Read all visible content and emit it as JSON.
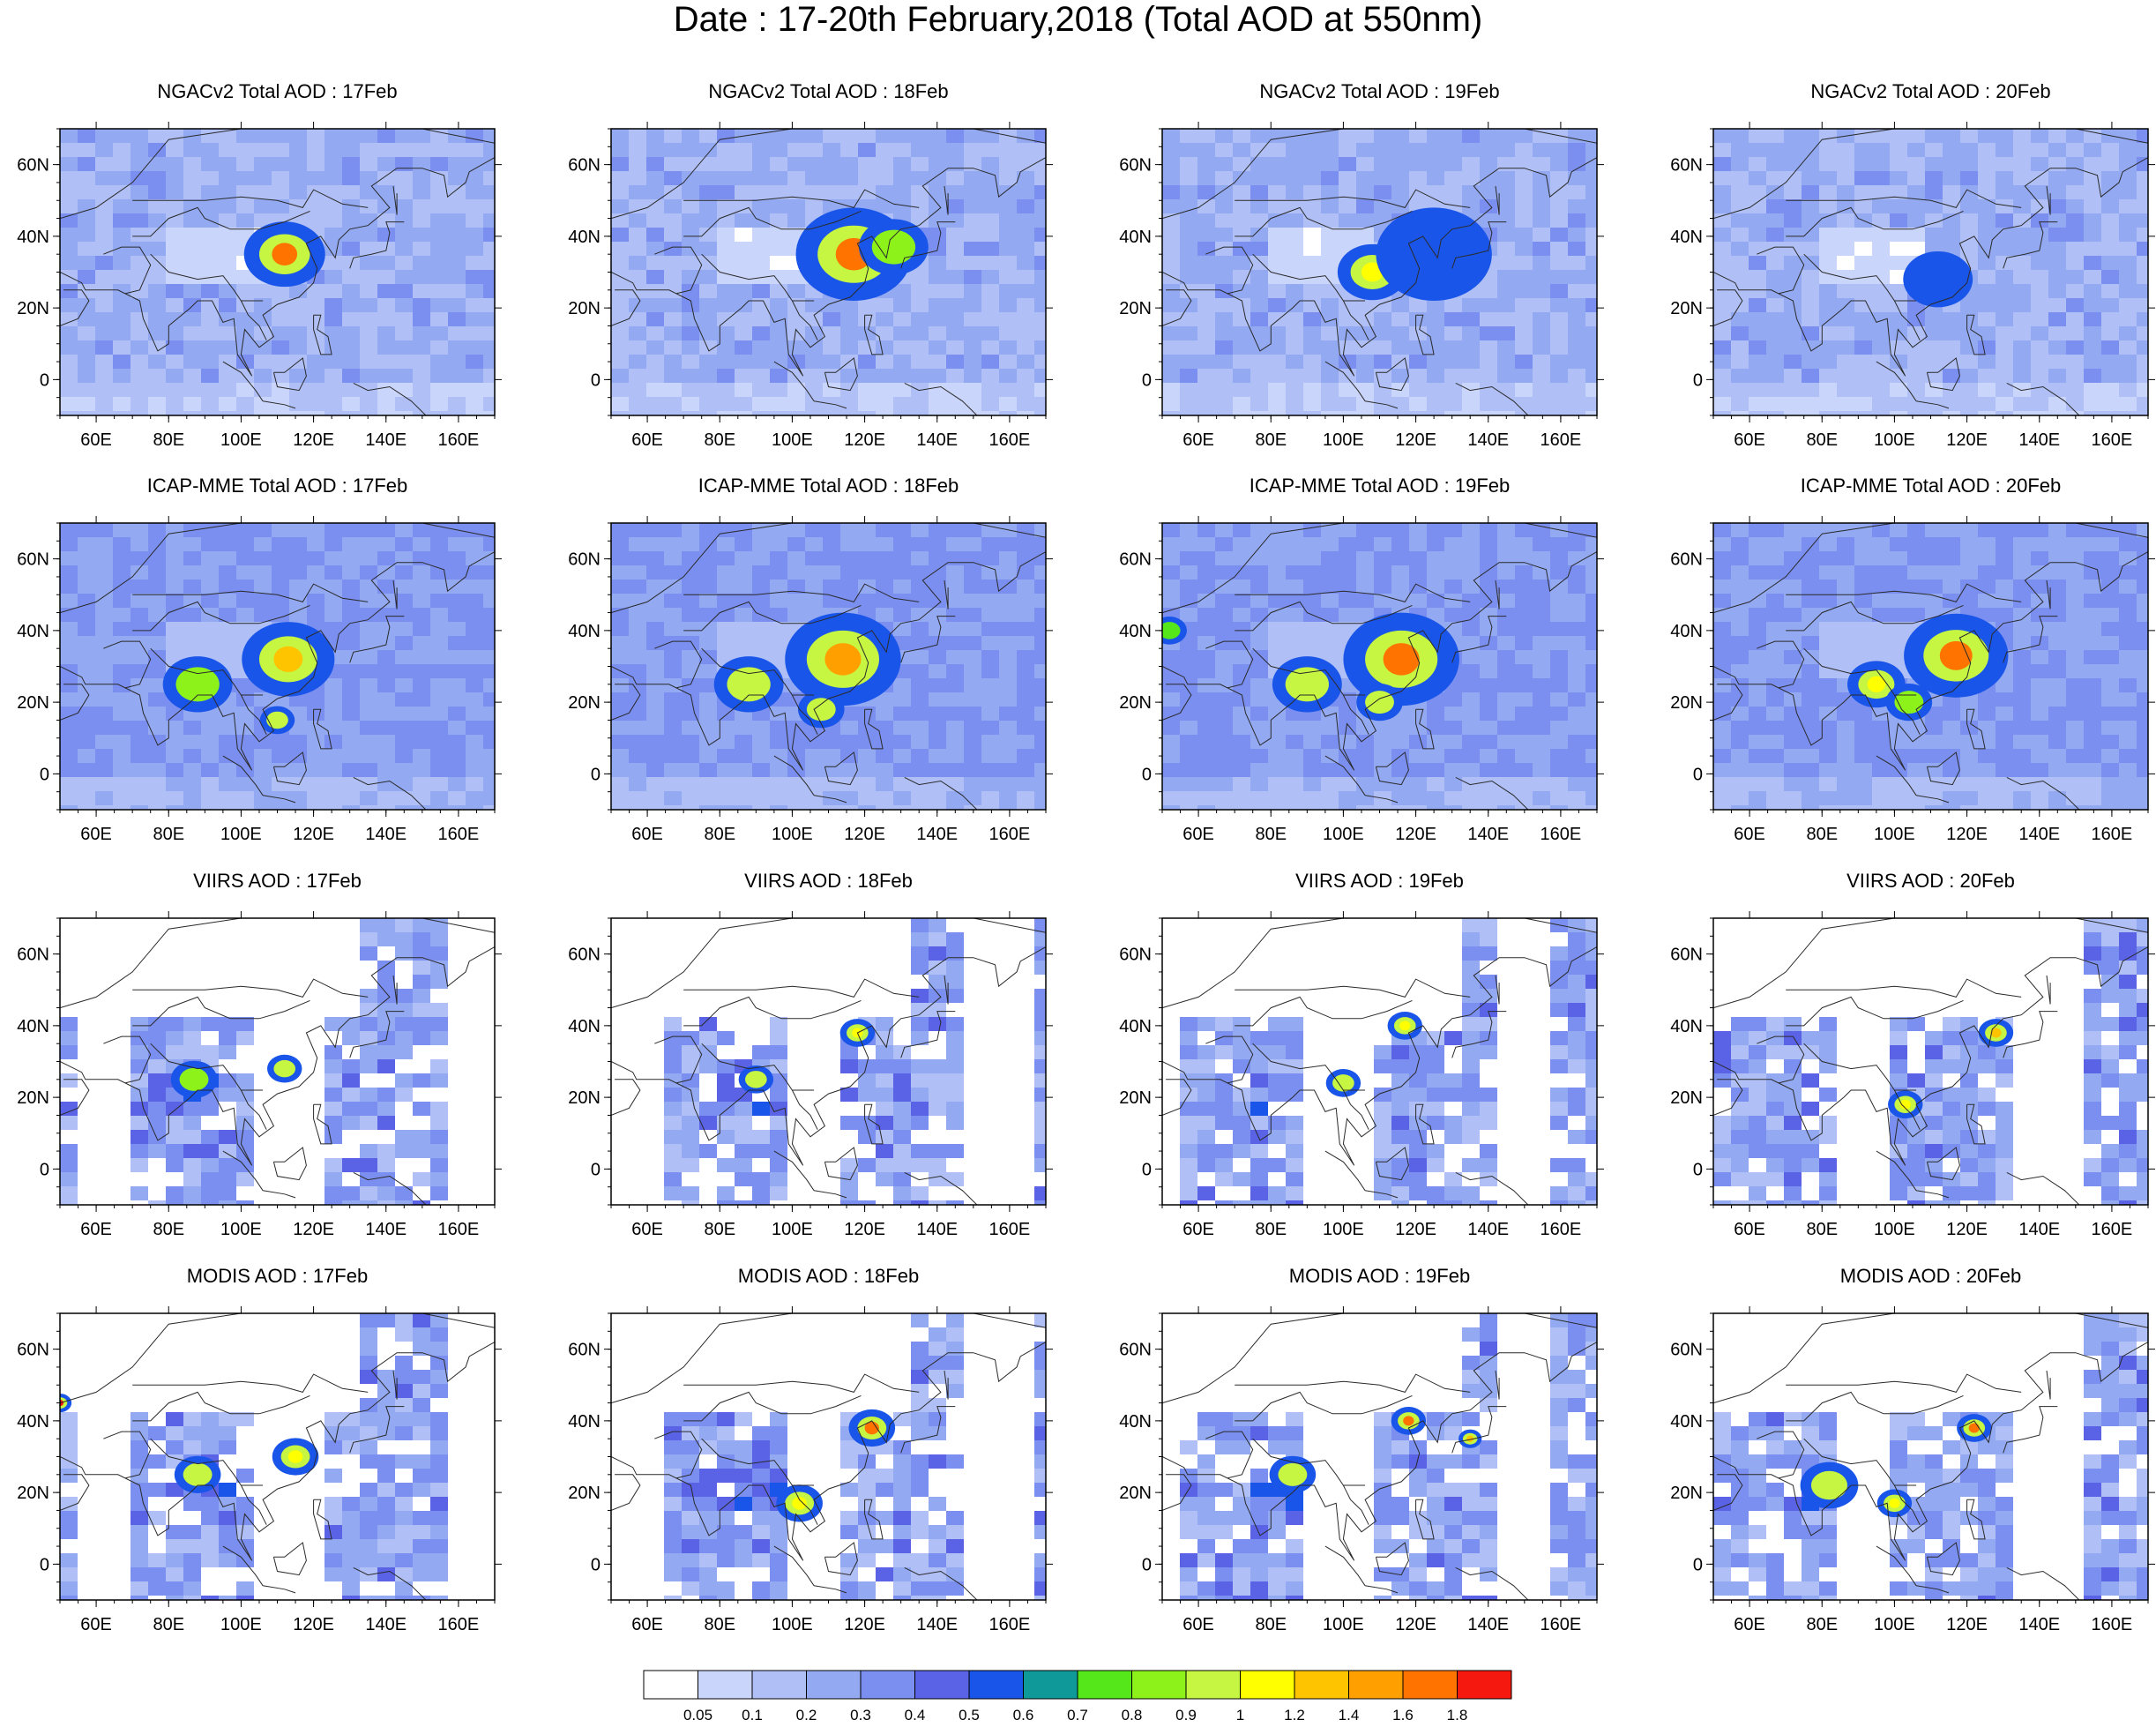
{
  "title": "Date : 17-20th February,2018 (Total AOD at 550nm)",
  "chart_data": {
    "type": "heatmap",
    "layout": "4x4 grid of map panels",
    "x_ticks": [
      "60E",
      "80E",
      "100E",
      "120E",
      "140E",
      "160E"
    ],
    "x_tick_values": [
      60,
      80,
      100,
      120,
      140,
      160
    ],
    "y_ticks": [
      "60N",
      "40N",
      "20N",
      "0"
    ],
    "y_tick_values": [
      60,
      40,
      20,
      0
    ],
    "xlim": [
      50,
      170
    ],
    "ylim": [
      -10,
      70
    ],
    "rows": [
      {
        "model": "NGACv2 Total AOD",
        "coverage": "full",
        "titles": [
          "NGACv2 Total AOD : 17Feb",
          "NGACv2 Total AOD : 18Feb",
          "NGACv2 Total AOD : 19Feb",
          "NGACv2 Total AOD : 20Feb"
        ]
      },
      {
        "model": "ICAP-MME Total AOD",
        "coverage": "full",
        "titles": [
          "ICAP-MME Total AOD : 17Feb",
          "ICAP-MME Total AOD : 18Feb",
          "ICAP-MME Total AOD : 19Feb",
          "ICAP-MME Total AOD : 20Feb"
        ]
      },
      {
        "model": "VIIRS AOD",
        "coverage": "swaths",
        "titles": [
          "VIIRS AOD : 17Feb",
          "VIIRS AOD : 18Feb",
          "VIIRS AOD : 19Feb",
          "VIIRS AOD : 20Feb"
        ]
      },
      {
        "model": "MODIS AOD",
        "coverage": "swaths",
        "titles": [
          "MODIS AOD : 17Feb",
          "MODIS AOD : 18Feb",
          "MODIS AOD : 19Feb",
          "MODIS AOD : 20Feb"
        ]
      }
    ],
    "hotspots": [
      [
        [
          {
            "lon": 112,
            "lat": 35,
            "aod": 1.6,
            "r": 7
          }
        ],
        [
          {
            "lon": 117,
            "lat": 35,
            "aod": 1.6,
            "r": 10
          },
          {
            "lon": 128,
            "lat": 37,
            "aod": 0.8,
            "r": 6
          }
        ],
        [
          {
            "lon": 108,
            "lat": 30,
            "aod": 1.0,
            "r": 6
          },
          {
            "lon": 125,
            "lat": 35,
            "aod": 0.5,
            "r": 10
          }
        ],
        [
          {
            "lon": 112,
            "lat": 28,
            "aod": 0.5,
            "r": 6
          }
        ]
      ],
      [
        [
          {
            "lon": 113,
            "lat": 32,
            "aod": 1.2,
            "r": 8
          },
          {
            "lon": 110,
            "lat": 15,
            "aod": 0.9,
            "r": 3
          },
          {
            "lon": 88,
            "lat": 25,
            "aod": 0.8,
            "r": 6
          }
        ],
        [
          {
            "lon": 114,
            "lat": 32,
            "aod": 1.4,
            "r": 10
          },
          {
            "lon": 108,
            "lat": 18,
            "aod": 0.9,
            "r": 4
          },
          {
            "lon": 88,
            "lat": 25,
            "aod": 0.9,
            "r": 6
          }
        ],
        [
          {
            "lon": 116,
            "lat": 32,
            "aod": 1.6,
            "r": 10
          },
          {
            "lon": 110,
            "lat": 20,
            "aod": 0.9,
            "r": 4
          },
          {
            "lon": 90,
            "lat": 25,
            "aod": 0.9,
            "r": 6
          },
          {
            "lon": 52,
            "lat": 40,
            "aod": 0.7,
            "r": 3
          }
        ],
        [
          {
            "lon": 117,
            "lat": 33,
            "aod": 1.6,
            "r": 9
          },
          {
            "lon": 95,
            "lat": 25,
            "aod": 1.0,
            "r": 5
          },
          {
            "lon": 104,
            "lat": 20,
            "aod": 0.8,
            "r": 4
          }
        ]
      ],
      [
        [
          {
            "lon": 87,
            "lat": 25,
            "aod": 0.8,
            "r": 4
          },
          {
            "lon": 112,
            "lat": 28,
            "aod": 0.9,
            "r": 3
          }
        ],
        [
          {
            "lon": 90,
            "lat": 25,
            "aod": 0.9,
            "r": 3
          },
          {
            "lon": 118,
            "lat": 38,
            "aod": 1.0,
            "r": 3
          }
        ],
        [
          {
            "lon": 117,
            "lat": 40,
            "aod": 1.0,
            "r": 3
          },
          {
            "lon": 100,
            "lat": 24,
            "aod": 0.9,
            "r": 3
          }
        ],
        [
          {
            "lon": 128,
            "lat": 38,
            "aod": 1.2,
            "r": 3
          },
          {
            "lon": 103,
            "lat": 18,
            "aod": 1.0,
            "r": 3
          }
        ]
      ],
      [
        [
          {
            "lon": 88,
            "lat": 25,
            "aod": 0.9,
            "r": 4
          },
          {
            "lon": 115,
            "lat": 30,
            "aod": 1.0,
            "r": 4
          },
          {
            "lon": 50,
            "lat": 45,
            "aod": 1.8,
            "r": 2
          }
        ],
        [
          {
            "lon": 122,
            "lat": 38,
            "aod": 1.6,
            "r": 4
          },
          {
            "lon": 102,
            "lat": 17,
            "aod": 1.0,
            "r": 4
          }
        ],
        [
          {
            "lon": 118,
            "lat": 40,
            "aod": 1.6,
            "r": 3
          },
          {
            "lon": 86,
            "lat": 25,
            "aod": 0.9,
            "r": 4
          },
          {
            "lon": 135,
            "lat": 35,
            "aod": 1.2,
            "r": 2
          }
        ],
        [
          {
            "lon": 82,
            "lat": 22,
            "aod": 0.9,
            "r": 5
          },
          {
            "lon": 122,
            "lat": 38,
            "aod": 1.6,
            "r": 3
          },
          {
            "lon": 100,
            "lat": 17,
            "aod": 1.0,
            "r": 3
          }
        ]
      ]
    ],
    "colorbar": {
      "labels": [
        "0.05",
        "0.1",
        "0.2",
        "0.3",
        "0.4",
        "0.5",
        "0.6",
        "0.7",
        "0.8",
        "0.9",
        "1",
        "1.2",
        "1.4",
        "1.6",
        "1.8"
      ],
      "thresholds": [
        0.05,
        0.1,
        0.2,
        0.3,
        0.4,
        0.5,
        0.6,
        0.7,
        0.8,
        0.9,
        1,
        1.2,
        1.4,
        1.6,
        1.8
      ],
      "colors": [
        "#ffffff",
        "#cad5fb",
        "#b0c0f6",
        "#93a9f2",
        "#7b8ff0",
        "#5a63e6",
        "#1a55ea",
        "#0f9a99",
        "#55e71a",
        "#8df21a",
        "#c6f642",
        "#ffff00",
        "#ffc400",
        "#ffa000",
        "#ff7300",
        "#f5180e"
      ]
    }
  }
}
